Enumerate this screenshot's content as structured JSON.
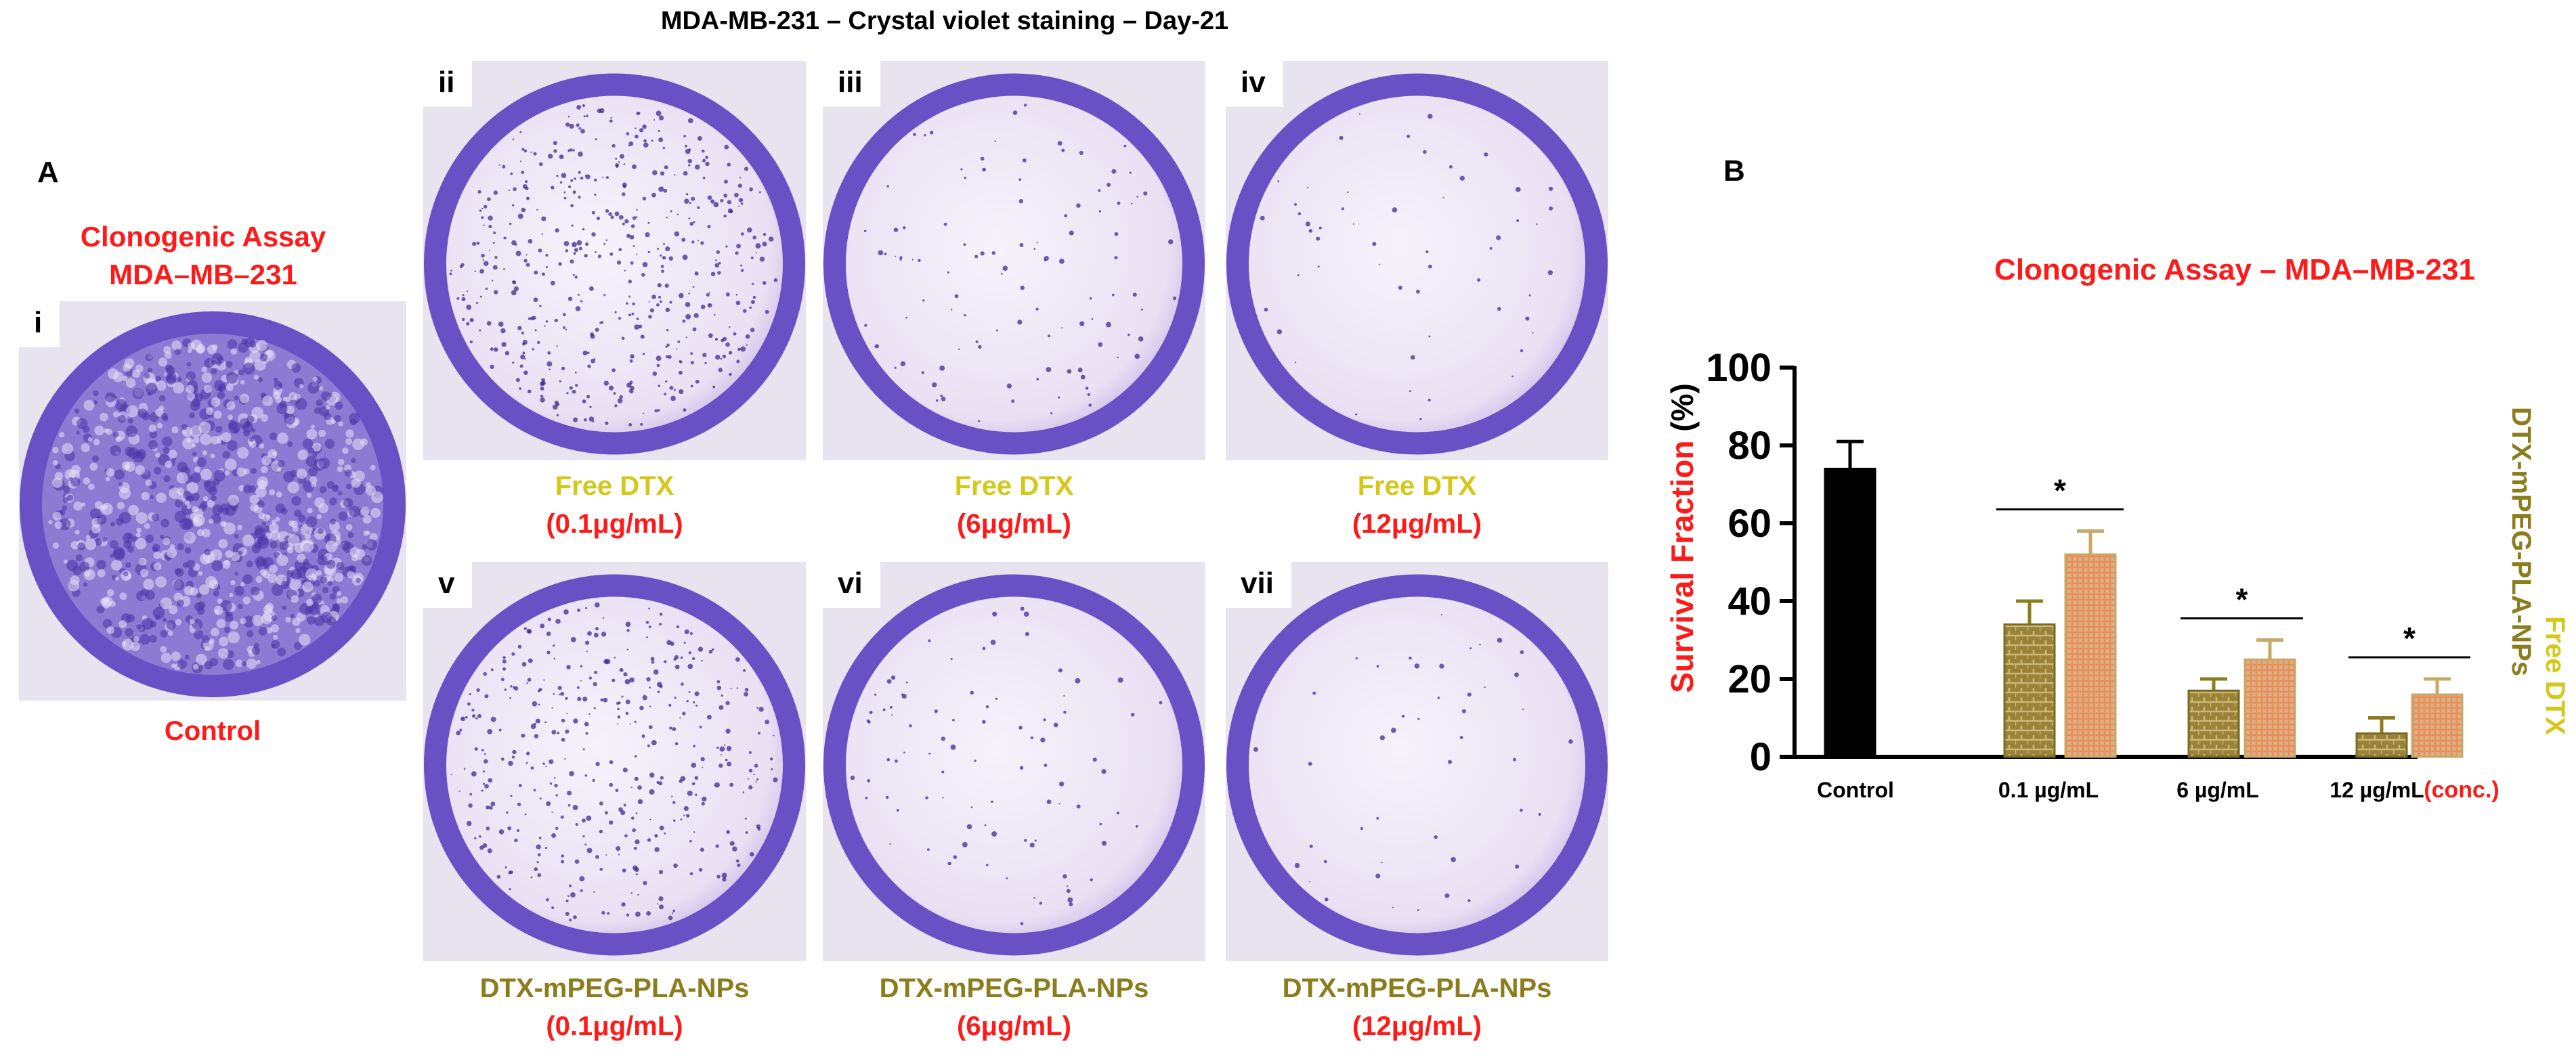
{
  "figure_title": "MDA-MB-231 – Crystal violet staining – Day-21",
  "panel_a": {
    "letter": "A",
    "heading_line1": "Clonogenic Assay",
    "heading_line2": "MDA–MB–231",
    "control_caption": "Control",
    "wells": [
      {
        "label": "i"
      },
      {
        "label": "ii",
        "caption_line1": "Free DTX",
        "caption_line2": "(0.1μg/mL)"
      },
      {
        "label": "iii",
        "caption_line1": "Free DTX",
        "caption_line2": "(6μg/mL)"
      },
      {
        "label": "iv",
        "caption_line1": "Free DTX",
        "caption_line2": "(12μg/mL)"
      },
      {
        "label": "v",
        "caption_line1": "DTX-mPEG-PLA-NPs",
        "caption_line2": "(0.1μg/mL)"
      },
      {
        "label": "vi",
        "caption_line1": "DTX-mPEG-PLA-NPs",
        "caption_line2": "(6μg/mL)"
      },
      {
        "label": "vii",
        "caption_line1": "DTX-mPEG-PLA-NPs",
        "caption_line2": "(12μg/mL)"
      }
    ]
  },
  "panel_b": {
    "letter": "B"
  },
  "colors": {
    "free_dtx": "#d4c818",
    "np": "#8b7d1c",
    "red": "#ff1a1a",
    "stain": "#5a3fc0",
    "control_bar": "#000000",
    "np_bar": "#9a8338",
    "free_bar": "#d4b483",
    "free_bar_pattern": "#f08a5a"
  },
  "chart_data": {
    "type": "bar",
    "title": "Clonogenic Assay – MDA–MB-231",
    "ylabel_main": "Survival Fraction",
    "ylabel_unit": "(%)",
    "xlabel_suffix": "(conc.)",
    "ylim": [
      0,
      100
    ],
    "yticks": [
      0,
      20,
      40,
      60,
      80,
      100
    ],
    "categories": [
      "Control",
      "0.1 µg/mL",
      "6 µg/mL",
      "12 µg/mL"
    ],
    "series": [
      {
        "name": "Control",
        "values": [
          74,
          null,
          null,
          null
        ],
        "errors": [
          7,
          null,
          null,
          null
        ]
      },
      {
        "name": "DTX-mPEG-PLA-NPs",
        "values": [
          null,
          34,
          17,
          6
        ],
        "errors": [
          null,
          6,
          3,
          4
        ]
      },
      {
        "name": "Free DTX",
        "values": [
          null,
          52,
          25,
          16
        ],
        "errors": [
          null,
          6,
          5,
          4
        ]
      }
    ],
    "significance": [
      "",
      "*",
      "*",
      "*"
    ],
    "legend": [
      "DTX-mPEG-PLA-NPs",
      "Free DTX"
    ]
  }
}
